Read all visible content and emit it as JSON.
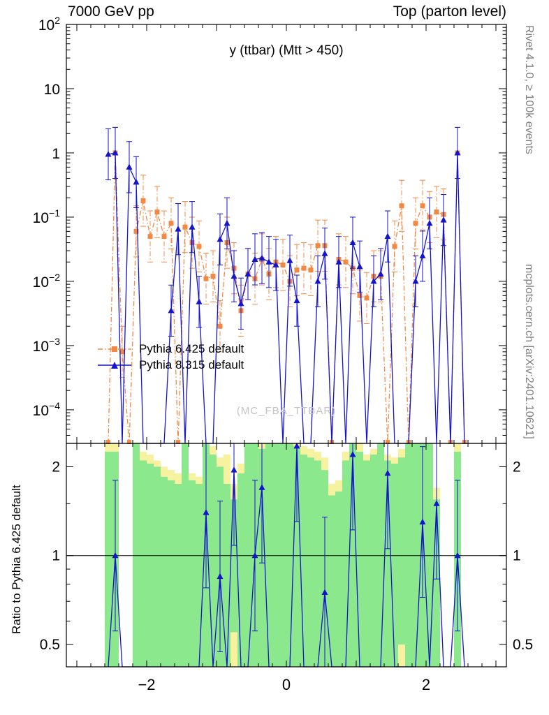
{
  "header": {
    "left": "7000 GeV pp",
    "right": "Top (parton level)"
  },
  "panel": {
    "watermark": "(MC_FBA_TTBAR)"
  },
  "side": {
    "rivet": "Rivet 4.1.0, ≥ 100k events",
    "mcplots": "mcplots.cern.ch [arXiv:2401.10621]"
  },
  "legend": [
    {
      "label": "Pythia 6.425 default"
    },
    {
      "label": "Pythia 8.315 default"
    }
  ],
  "colors": {
    "pythia6": "#f18945",
    "pythia8": "#1414cc",
    "band_green": "#8ce88c",
    "band_yellow": "#f6f2a0",
    "watermark": "#c4c4c4",
    "side_text": "#808080"
  },
  "chart_data": {
    "type": "line",
    "title": "y (ttbar) (Mtt > 450)",
    "xlabel": "",
    "ylabel": "",
    "x": [
      -2.55,
      -2.45,
      -2.35,
      -2.25,
      -2.15,
      -2.05,
      -1.95,
      -1.85,
      -1.75,
      -1.65,
      -1.55,
      -1.45,
      -1.35,
      -1.25,
      -1.15,
      -1.05,
      -0.95,
      -0.85,
      -0.75,
      -0.65,
      -0.55,
      -0.45,
      -0.35,
      -0.25,
      -0.15,
      -0.05,
      0.05,
      0.15,
      0.25,
      0.35,
      0.45,
      0.55,
      0.65,
      0.75,
      0.85,
      0.95,
      1.05,
      1.15,
      1.25,
      1.35,
      1.45,
      1.55,
      1.65,
      1.75,
      1.85,
      1.95,
      2.05,
      2.15,
      2.25,
      2.35,
      2.45,
      2.55
    ],
    "series": [
      {
        "name": "Pythia 6.425 default",
        "color": "#f18945",
        "style": "dashdot",
        "marker": "square",
        "err_factor": 2.5,
        "values": [
          0,
          1.0,
          0.0008,
          0,
          0.06,
          0.18,
          0.05,
          0.12,
          0.05,
          0.08,
          0,
          0.07,
          0.04,
          0.035,
          0.011,
          0.012,
          0.002,
          0.04,
          0.016,
          0.0035,
          0.013,
          0.011,
          0.022,
          0.013,
          0.02,
          0.018,
          0.01,
          0.015,
          0.016,
          0.015,
          0.036,
          0.036,
          0,
          0.022,
          0.02,
          0.016,
          0.006,
          0.0055,
          0.012,
          0.012,
          0,
          0.035,
          0.15,
          0,
          0.08,
          0.15,
          0.1,
          0.12,
          0.11,
          0,
          1.0,
          0
        ]
      },
      {
        "name": "Pythia 8.315 default",
        "color": "#1414cc",
        "style": "solid",
        "marker": "triangle",
        "err_factor": 2.5,
        "values": [
          0.95,
          1.0,
          0,
          0.6,
          0.35,
          0,
          0,
          0,
          0,
          0.0035,
          0.065,
          0,
          0.07,
          0.0048,
          0,
          0,
          0.045,
          0.08,
          0.012,
          0.0045,
          0.013,
          0.022,
          0.023,
          0.02,
          0.018,
          0,
          0.021,
          0.005,
          0,
          0,
          0.01,
          0.027,
          0,
          0.02,
          0,
          0.04,
          0.017,
          0,
          0.01,
          0.013,
          0.05,
          0,
          0,
          0,
          0.01,
          0.025,
          0.08,
          0,
          0.09,
          0,
          1.0,
          0
        ]
      }
    ],
    "main_axis": {
      "ylog": true,
      "ylim": [
        3e-05,
        100
      ],
      "yticks": [
        100,
        10,
        1,
        0.1,
        0.01,
        0.001,
        0.0001
      ],
      "xlim": [
        -3.15,
        3.15
      ],
      "xticks": [
        -2,
        0,
        2
      ],
      "xminor_step": 0.2
    },
    "ratio": {
      "label": "Ratio to Pythia 6.425 default",
      "ylog": true,
      "ylim": [
        0.42,
        2.4
      ],
      "yticks": [
        2,
        1,
        0.5
      ],
      "yminor": [
        0.6,
        0.7,
        0.8,
        0.9,
        1.5
      ],
      "err_factor": 1.8,
      "values": [
        0,
        1.0,
        0,
        0,
        0,
        0,
        0,
        0,
        0,
        0,
        0,
        0,
        0,
        0,
        1.4,
        0,
        0.85,
        0,
        1.95,
        0,
        0,
        1.0,
        1.7,
        0,
        0,
        0,
        0,
        2.35,
        0,
        0,
        0,
        0.75,
        0,
        0,
        0,
        2.2,
        0,
        0,
        0,
        0,
        1.9,
        0,
        0,
        0,
        0,
        1.3,
        0,
        1.5,
        0,
        0,
        1.0,
        0
      ],
      "bands": [
        [
          0.42,
          2.25,
          2.25,
          2.4
        ],
        [
          0.42,
          2.25,
          2.25,
          2.4
        ],
        null,
        null,
        [
          0.42,
          2.4,
          null,
          null
        ],
        [
          0.42,
          2.1,
          2.1,
          2.25
        ],
        [
          0.42,
          2.05,
          2.05,
          2.2
        ],
        [
          0.42,
          2.0,
          2.0,
          2.1
        ],
        [
          0.42,
          1.85,
          1.85,
          2.0
        ],
        [
          0.42,
          1.8,
          1.8,
          1.95
        ],
        [
          0.42,
          1.75,
          1.75,
          1.9
        ],
        [
          0.42,
          2.4,
          null,
          null
        ],
        [
          0.42,
          1.8,
          1.8,
          1.9
        ],
        [
          0.42,
          1.75,
          1.75,
          1.85
        ],
        [
          0.42,
          2.4,
          null,
          null
        ],
        [
          0.42,
          2.2,
          2.2,
          2.35
        ],
        [
          0.42,
          2.0,
          2.0,
          2.15
        ],
        [
          0.42,
          1.75,
          1.75,
          2.2
        ],
        [
          0.55,
          1.55,
          0.42,
          1.75
        ],
        [
          0.42,
          1.9,
          1.9,
          2.05
        ],
        [
          0.42,
          2.4,
          null,
          null
        ],
        [
          0.42,
          2.4,
          null,
          null
        ],
        [
          0.42,
          2.3,
          2.3,
          2.4
        ],
        [
          0.42,
          2.4,
          null,
          null
        ],
        [
          0.42,
          2.4,
          null,
          null
        ],
        [
          0.42,
          2.4,
          null,
          null
        ],
        [
          0.42,
          2.4,
          null,
          null
        ],
        [
          0.42,
          2.35,
          2.35,
          2.4
        ],
        [
          0.42,
          2.2,
          2.2,
          2.35
        ],
        [
          0.42,
          2.15,
          2.15,
          2.3
        ],
        [
          0.42,
          2.1,
          2.1,
          2.25
        ],
        [
          0.42,
          1.95,
          1.95,
          2.15
        ],
        [
          0.42,
          1.6,
          1.6,
          1.75
        ],
        [
          0.42,
          1.65,
          1.65,
          1.8
        ],
        [
          0.42,
          2.1,
          2.1,
          2.25
        ],
        [
          0.42,
          2.4,
          null,
          null
        ],
        [
          0.42,
          2.25,
          2.25,
          2.4
        ],
        [
          0.42,
          2.1,
          2.1,
          2.2
        ],
        [
          0.42,
          2.2,
          2.2,
          2.3
        ],
        [
          0.42,
          2.4,
          null,
          null
        ],
        [
          0.42,
          2.1,
          2.1,
          2.2
        ],
        [
          0.42,
          2.05,
          2.05,
          2.15
        ],
        [
          0.5,
          2.15,
          0.42,
          2.3
        ],
        [
          0.42,
          2.4,
          null,
          null
        ],
        [
          0.42,
          2.4,
          null,
          null
        ],
        [
          0.42,
          2.4,
          null,
          null
        ],
        [
          0.42,
          2.4,
          null,
          null
        ],
        [
          0.42,
          1.55,
          1.55,
          1.7
        ],
        null,
        null,
        [
          0.42,
          2.25,
          2.25,
          2.4
        ],
        null
      ]
    }
  }
}
